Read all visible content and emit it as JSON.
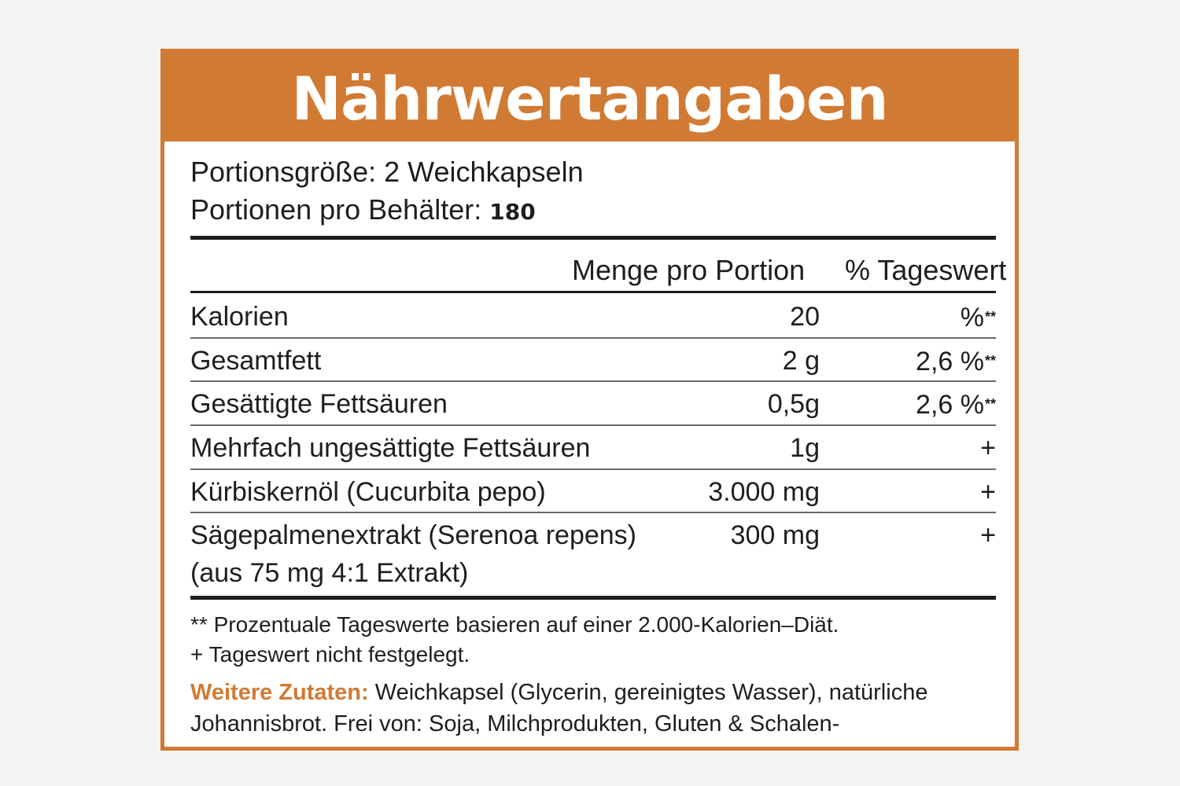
{
  "title": "Nährwertangaben",
  "serving": {
    "size_label": "Portionsgröße: 2 Weichkapseln",
    "per_container_label": "Portionen pro Behälter:",
    "per_container_value": "180"
  },
  "columns": {
    "amount": "Menge pro Portion",
    "daily_value": "% Tageswert"
  },
  "rows": [
    {
      "name": "Kalorien",
      "amount": "20",
      "dv": "%",
      "dv_mark": "**"
    },
    {
      "name": "Gesamtfett",
      "amount": "2 g",
      "dv": "2,6 %",
      "dv_mark": "**"
    },
    {
      "name": "Gesättigte Fettsäuren",
      "amount": "0,5g",
      "dv": "2,6 %",
      "dv_mark": "**"
    },
    {
      "name": "Mehrfach ungesättigte Fettsäuren",
      "amount": "1g",
      "dv": "+",
      "dv_mark": ""
    },
    {
      "name": "Kürbiskernöl (Cucurbita pepo)",
      "amount": "3.000 mg",
      "dv": "+",
      "dv_mark": ""
    },
    {
      "name": "Sägepalmenextrakt (Serenoa repens)",
      "amount": "300 mg",
      "dv": "+",
      "dv_mark": ""
    }
  ],
  "row_subnote": "(aus 75 mg 4:1 Extrakt)",
  "footnotes": [
    "** Prozentuale Tageswerte basieren auf einer 2.000-Kalorien–Diät.",
    "+ Tageswert nicht festgelegt."
  ],
  "ingredients": {
    "label": "Weitere Zutaten:",
    "text": "Weichkapsel (Glycerin, gereinigtes Wasser), natürliche Johannisbrot. Frei von: Soja, Milchprodukten, Gluten & Schalen-"
  },
  "colors": {
    "accent": "#d17a33",
    "text": "#1e1e1e",
    "background": "#f3f3f1"
  }
}
